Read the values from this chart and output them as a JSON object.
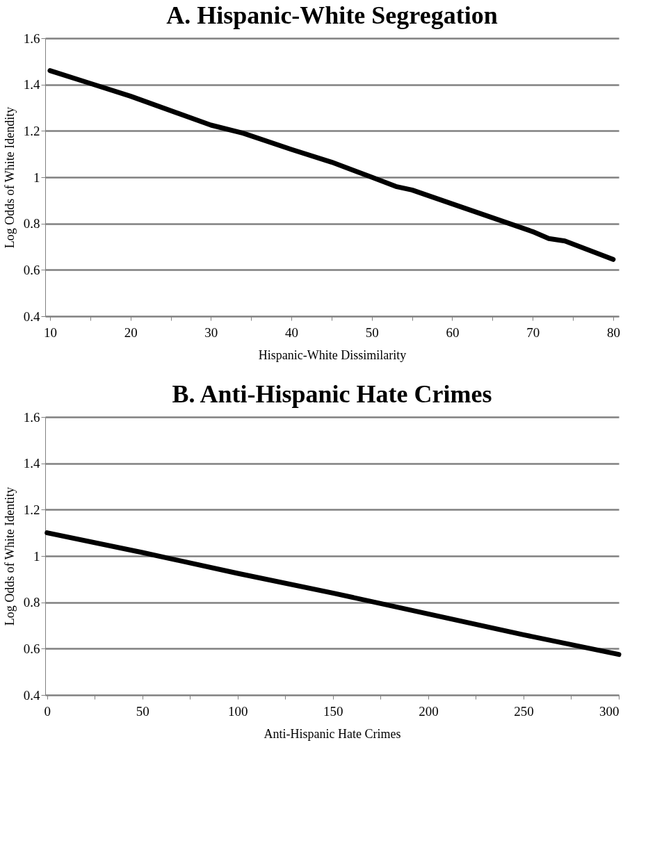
{
  "chart_data": [
    {
      "type": "line",
      "title": "A. Hispanic-White Segregation",
      "xlabel": "Hispanic-White Dissimilarity",
      "ylabel": "Log Odds of White Idendity",
      "x": [
        10,
        15,
        20,
        30,
        34,
        40,
        45,
        50,
        53,
        55,
        60,
        70,
        72,
        74,
        80
      ],
      "series": [
        {
          "color": "#000000",
          "values": [
            1.46,
            1.405,
            1.35,
            1.225,
            1.19,
            1.12,
            1.065,
            1.0,
            0.96,
            0.945,
            0.885,
            0.765,
            0.735,
            0.725,
            0.645
          ]
        }
      ],
      "xlim": [
        9.4,
        80.7
      ],
      "xticks": [
        10,
        {
          "value": 15,
          "label": null
        },
        20,
        {
          "value": 25,
          "label": null
        },
        30,
        {
          "value": 35,
          "label": null
        },
        40,
        {
          "value": 45,
          "label": null
        },
        50,
        {
          "value": 55,
          "label": null
        },
        60,
        {
          "value": 65,
          "label": null
        },
        70,
        {
          "value": 75,
          "label": null
        },
        80
      ],
      "ylim": [
        0.4,
        1.6
      ],
      "yticks": [
        0.4,
        0.6,
        0.8,
        1,
        1.2,
        1.4,
        1.6
      ],
      "grid": "y",
      "marker": "none",
      "line_style": "solid"
    },
    {
      "type": "line",
      "title": "B. Anti-Hispanic Hate Crimes",
      "xlabel": "Anti-Hispanic Hate Crimes",
      "ylabel": "Log Odds of White Identity",
      "x": [
        0,
        50,
        100,
        150,
        200,
        250,
        300
      ],
      "series": [
        {
          "color": "#000000",
          "values": [
            1.1,
            1.015,
            0.925,
            0.84,
            0.75,
            0.66,
            0.575
          ]
        }
      ],
      "xlim": [
        -1,
        300
      ],
      "xticks": [
        0,
        {
          "value": 25,
          "label": null
        },
        50,
        {
          "value": 75,
          "label": null
        },
        100,
        {
          "value": 125,
          "label": null
        },
        150,
        {
          "value": 175,
          "label": null
        },
        200,
        {
          "value": 225,
          "label": null
        },
        250,
        {
          "value": 275,
          "label": null
        },
        300
      ],
      "ylim": [
        0.4,
        1.6
      ],
      "yticks": [
        0.4,
        0.6,
        0.8,
        1,
        1.2,
        1.4,
        1.6
      ],
      "grid": "y",
      "marker": "none",
      "line_style": "solid"
    }
  ]
}
